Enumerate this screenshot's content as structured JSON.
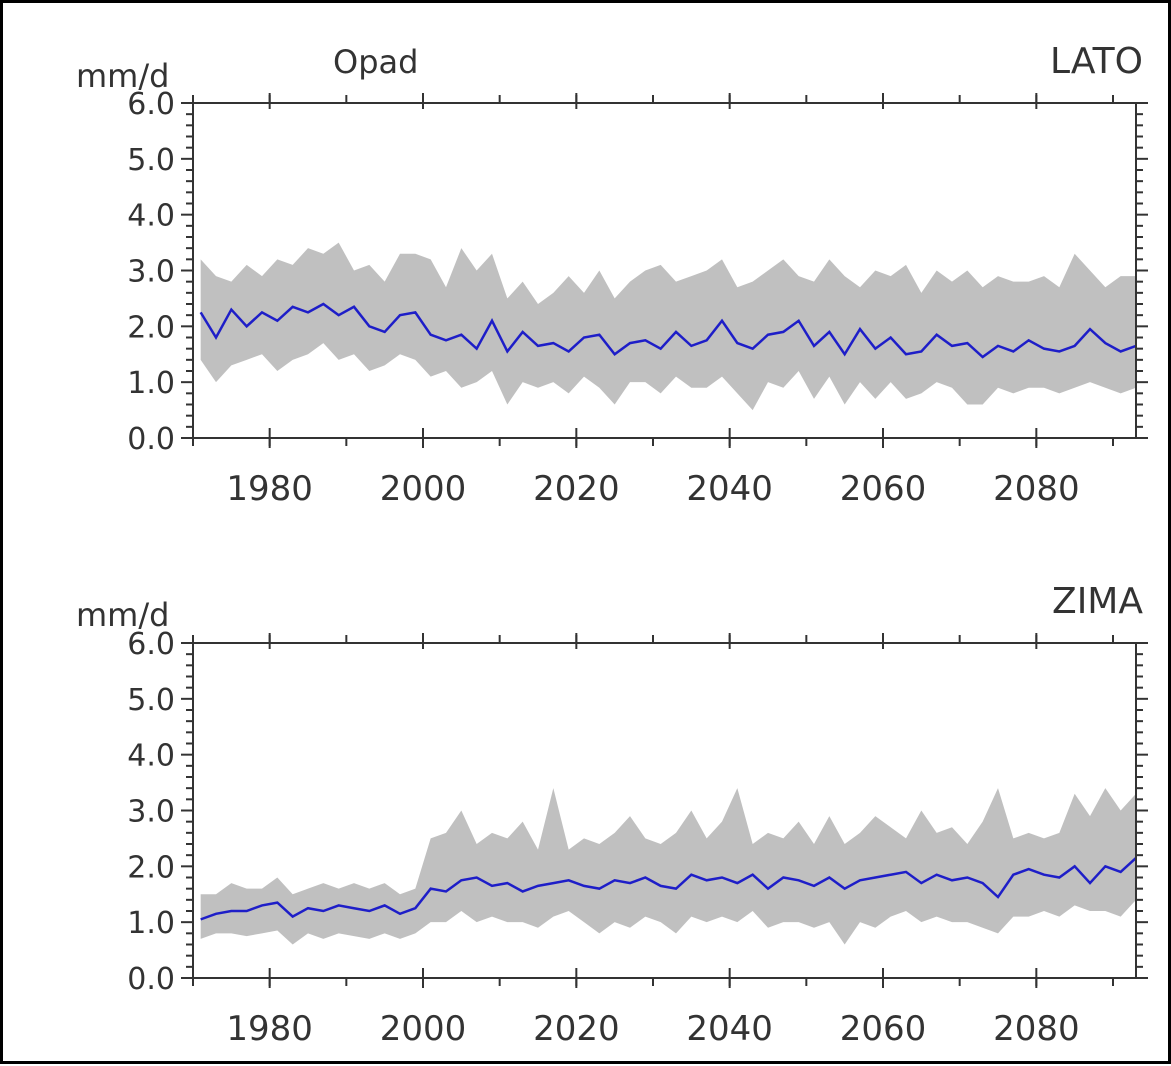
{
  "colors": {
    "band": "#c0c0c0",
    "line": "#1e1ec8",
    "axis": "#333333",
    "frame": "#000000"
  },
  "chart_data": [
    {
      "type": "area",
      "title": "Opad",
      "season_label": "LATO",
      "ylabel": "mm/d",
      "xlabel": "",
      "xlim": [
        1970,
        2093
      ],
      "ylim": [
        0,
        6
      ],
      "grid": false,
      "xticks": [
        "1980",
        "2000",
        "2020",
        "2040",
        "2060",
        "2080"
      ],
      "yticks": [
        "0.0",
        "1.0",
        "2.0",
        "3.0",
        "4.0",
        "5.0",
        "6.0"
      ],
      "x": [
        1971,
        1973,
        1975,
        1977,
        1979,
        1981,
        1983,
        1985,
        1987,
        1989,
        1991,
        1993,
        1995,
        1997,
        1999,
        2001,
        2003,
        2005,
        2007,
        2009,
        2011,
        2013,
        2015,
        2017,
        2019,
        2021,
        2023,
        2025,
        2027,
        2029,
        2031,
        2033,
        2035,
        2037,
        2039,
        2041,
        2043,
        2045,
        2047,
        2049,
        2051,
        2053,
        2055,
        2057,
        2059,
        2061,
        2063,
        2065,
        2067,
        2069,
        2071,
        2073,
        2075,
        2077,
        2079,
        2081,
        2083,
        2085,
        2087,
        2089,
        2091,
        2093
      ],
      "series": [
        {
          "name": "",
          "role": "mean",
          "values": [
            2.25,
            1.8,
            2.3,
            2.0,
            2.25,
            2.1,
            2.35,
            2.25,
            2.4,
            2.2,
            2.35,
            2.0,
            1.9,
            2.2,
            2.25,
            1.85,
            1.75,
            1.85,
            1.6,
            2.1,
            1.55,
            1.9,
            1.65,
            1.7,
            1.55,
            1.8,
            1.85,
            1.5,
            1.7,
            1.75,
            1.6,
            1.9,
            1.65,
            1.75,
            2.1,
            1.7,
            1.6,
            1.85,
            1.9,
            2.1,
            1.65,
            1.9,
            1.5,
            1.95,
            1.6,
            1.8,
            1.5,
            1.55,
            1.85,
            1.65,
            1.7,
            1.45,
            1.65,
            1.55,
            1.75,
            1.6,
            1.55,
            1.65,
            1.95,
            1.7,
            1.55,
            1.65
          ]
        },
        {
          "name": "",
          "role": "upper",
          "values": [
            3.2,
            2.9,
            2.8,
            3.1,
            2.9,
            3.2,
            3.1,
            3.4,
            3.3,
            3.5,
            3.0,
            3.1,
            2.8,
            3.3,
            3.3,
            3.2,
            2.7,
            3.4,
            3.0,
            3.3,
            2.5,
            2.8,
            2.4,
            2.6,
            2.9,
            2.6,
            3.0,
            2.5,
            2.8,
            3.0,
            3.1,
            2.8,
            2.9,
            3.0,
            3.2,
            2.7,
            2.8,
            3.0,
            3.2,
            2.9,
            2.8,
            3.2,
            2.9,
            2.7,
            3.0,
            2.9,
            3.1,
            2.6,
            3.0,
            2.8,
            3.0,
            2.7,
            2.9,
            2.8,
            2.8,
            2.9,
            2.7,
            3.3,
            3.0,
            2.7,
            2.9,
            2.9
          ]
        },
        {
          "name": "",
          "role": "lower",
          "values": [
            1.4,
            1.0,
            1.3,
            1.4,
            1.5,
            1.2,
            1.4,
            1.5,
            1.7,
            1.4,
            1.5,
            1.2,
            1.3,
            1.5,
            1.4,
            1.1,
            1.2,
            0.9,
            1.0,
            1.2,
            0.6,
            1.0,
            0.9,
            1.0,
            0.8,
            1.1,
            0.9,
            0.6,
            1.0,
            1.0,
            0.8,
            1.1,
            0.9,
            0.9,
            1.1,
            0.8,
            0.5,
            1.0,
            0.9,
            1.2,
            0.7,
            1.1,
            0.6,
            1.0,
            0.7,
            1.0,
            0.7,
            0.8,
            1.0,
            0.9,
            0.6,
            0.6,
            0.9,
            0.8,
            0.9,
            0.9,
            0.8,
            0.9,
            1.0,
            0.9,
            0.8,
            0.9
          ]
        }
      ]
    },
    {
      "type": "area",
      "title": "",
      "season_label": "ZIMA",
      "ylabel": "mm/d",
      "xlabel": "",
      "xlim": [
        1970,
        2093
      ],
      "ylim": [
        0,
        6
      ],
      "grid": false,
      "xticks": [
        "1980",
        "2000",
        "2020",
        "2040",
        "2060",
        "2080"
      ],
      "yticks": [
        "0.0",
        "1.0",
        "2.0",
        "3.0",
        "4.0",
        "5.0",
        "6.0"
      ],
      "x": [
        1971,
        1973,
        1975,
        1977,
        1979,
        1981,
        1983,
        1985,
        1987,
        1989,
        1991,
        1993,
        1995,
        1997,
        1999,
        2001,
        2003,
        2005,
        2007,
        2009,
        2011,
        2013,
        2015,
        2017,
        2019,
        2021,
        2023,
        2025,
        2027,
        2029,
        2031,
        2033,
        2035,
        2037,
        2039,
        2041,
        2043,
        2045,
        2047,
        2049,
        2051,
        2053,
        2055,
        2057,
        2059,
        2061,
        2063,
        2065,
        2067,
        2069,
        2071,
        2073,
        2075,
        2077,
        2079,
        2081,
        2083,
        2085,
        2087,
        2089,
        2091,
        2093
      ],
      "series": [
        {
          "name": "",
          "role": "mean",
          "values": [
            1.05,
            1.15,
            1.2,
            1.2,
            1.3,
            1.35,
            1.1,
            1.25,
            1.2,
            1.3,
            1.25,
            1.2,
            1.3,
            1.15,
            1.25,
            1.6,
            1.55,
            1.75,
            1.8,
            1.65,
            1.7,
            1.55,
            1.65,
            1.7,
            1.75,
            1.65,
            1.6,
            1.75,
            1.7,
            1.8,
            1.65,
            1.6,
            1.85,
            1.75,
            1.8,
            1.7,
            1.85,
            1.6,
            1.8,
            1.75,
            1.65,
            1.8,
            1.6,
            1.75,
            1.8,
            1.85,
            1.9,
            1.7,
            1.85,
            1.75,
            1.8,
            1.7,
            1.45,
            1.85,
            1.95,
            1.85,
            1.8,
            2.0,
            1.7,
            2.0,
            1.9,
            2.15
          ]
        },
        {
          "name": "",
          "role": "upper",
          "values": [
            1.5,
            1.5,
            1.7,
            1.6,
            1.6,
            1.8,
            1.5,
            1.6,
            1.7,
            1.6,
            1.7,
            1.6,
            1.7,
            1.5,
            1.6,
            2.5,
            2.6,
            3.0,
            2.4,
            2.6,
            2.5,
            2.8,
            2.3,
            3.4,
            2.3,
            2.5,
            2.4,
            2.6,
            2.9,
            2.5,
            2.4,
            2.6,
            3.0,
            2.5,
            2.8,
            3.4,
            2.4,
            2.6,
            2.5,
            2.8,
            2.4,
            2.9,
            2.4,
            2.6,
            2.9,
            2.7,
            2.5,
            3.0,
            2.6,
            2.7,
            2.4,
            2.8,
            3.4,
            2.5,
            2.6,
            2.5,
            2.6,
            3.3,
            2.9,
            3.4,
            3.0,
            3.3
          ]
        },
        {
          "name": "",
          "role": "lower",
          "values": [
            0.7,
            0.8,
            0.8,
            0.75,
            0.8,
            0.85,
            0.6,
            0.8,
            0.7,
            0.8,
            0.75,
            0.7,
            0.8,
            0.7,
            0.8,
            1.0,
            1.0,
            1.2,
            1.0,
            1.1,
            1.0,
            1.0,
            0.9,
            1.1,
            1.2,
            1.0,
            0.8,
            1.0,
            0.9,
            1.1,
            1.0,
            0.8,
            1.1,
            1.0,
            1.1,
            1.0,
            1.2,
            0.9,
            1.0,
            1.0,
            0.9,
            1.0,
            0.6,
            1.0,
            0.9,
            1.1,
            1.2,
            1.0,
            1.1,
            1.0,
            1.0,
            0.9,
            0.8,
            1.1,
            1.1,
            1.2,
            1.1,
            1.3,
            1.2,
            1.2,
            1.1,
            1.4
          ]
        }
      ]
    }
  ]
}
